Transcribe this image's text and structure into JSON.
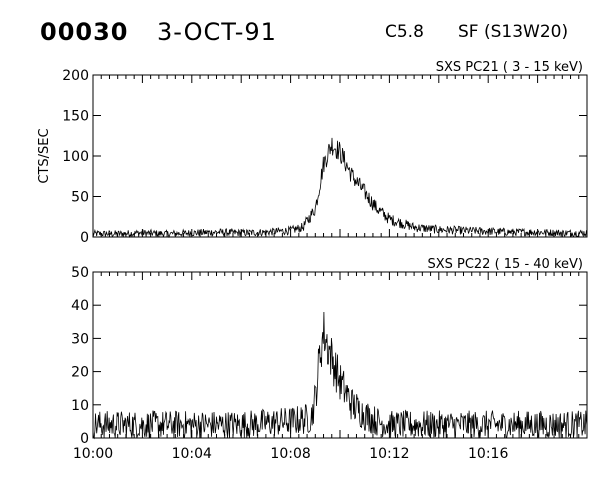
{
  "header": {
    "event_id": "00030",
    "date": "3-OCT-91",
    "flare_class": "C5.8",
    "flare_location": "SF (S13W20)"
  },
  "chart_data": [
    {
      "type": "line",
      "title": "SXS PC21  (  3 - 15 keV)",
      "ylabel": "CTS/SEC",
      "xlabel": "",
      "xlim": [
        "10:00",
        "10:20"
      ],
      "ylim": [
        0,
        200
      ],
      "yticks": [
        "0",
        "50",
        "100",
        "150",
        "200"
      ],
      "xticks": [
        "10:00",
        "10:04",
        "10:08",
        "10:12",
        "10:16"
      ],
      "grid": false,
      "series": [
        {
          "x": [
            "10:00",
            "10:01",
            "10:02",
            "10:03",
            "10:04",
            "10:05",
            "10:06",
            "10:07",
            "10:08",
            "10:08:30",
            "10:09",
            "10:09:20",
            "10:09:40",
            "10:10",
            "10:10:30",
            "10:11",
            "10:11:30",
            "10:12",
            "10:13",
            "10:14",
            "10:15",
            "10:16",
            "10:17",
            "10:18",
            "10:19",
            "10:20"
          ],
          "values": [
            4,
            4,
            5,
            4,
            5,
            6,
            5,
            6,
            8,
            12,
            35,
            90,
            115,
            105,
            75,
            55,
            35,
            22,
            12,
            9,
            8,
            7,
            6,
            6,
            5,
            5
          ]
        }
      ]
    },
    {
      "type": "line",
      "title": "SXS PC22  ( 15 - 40 keV)",
      "ylabel": "",
      "xlabel": "",
      "xlim": [
        "10:00",
        "10:20"
      ],
      "ylim": [
        0,
        50
      ],
      "yticks": [
        "0",
        "10",
        "20",
        "30",
        "40",
        "50"
      ],
      "xticks": [
        "10:00",
        "10:04",
        "10:08",
        "10:12",
        "10:16"
      ],
      "grid": false,
      "series": [
        {
          "x": [
            "10:00",
            "10:02",
            "10:04",
            "10:06",
            "10:08",
            "10:08:50",
            "10:09",
            "10:09:10",
            "10:09:20",
            "10:09:40",
            "10:10",
            "10:10:30",
            "10:11",
            "10:11:30",
            "10:12",
            "10:13",
            "10:14",
            "10:16",
            "10:18",
            "10:20"
          ],
          "values": [
            4,
            4,
            4,
            4,
            5,
            6,
            12,
            24,
            32,
            24,
            17,
            10,
            7,
            5,
            4,
            4,
            4,
            4,
            4,
            4
          ]
        }
      ]
    }
  ]
}
